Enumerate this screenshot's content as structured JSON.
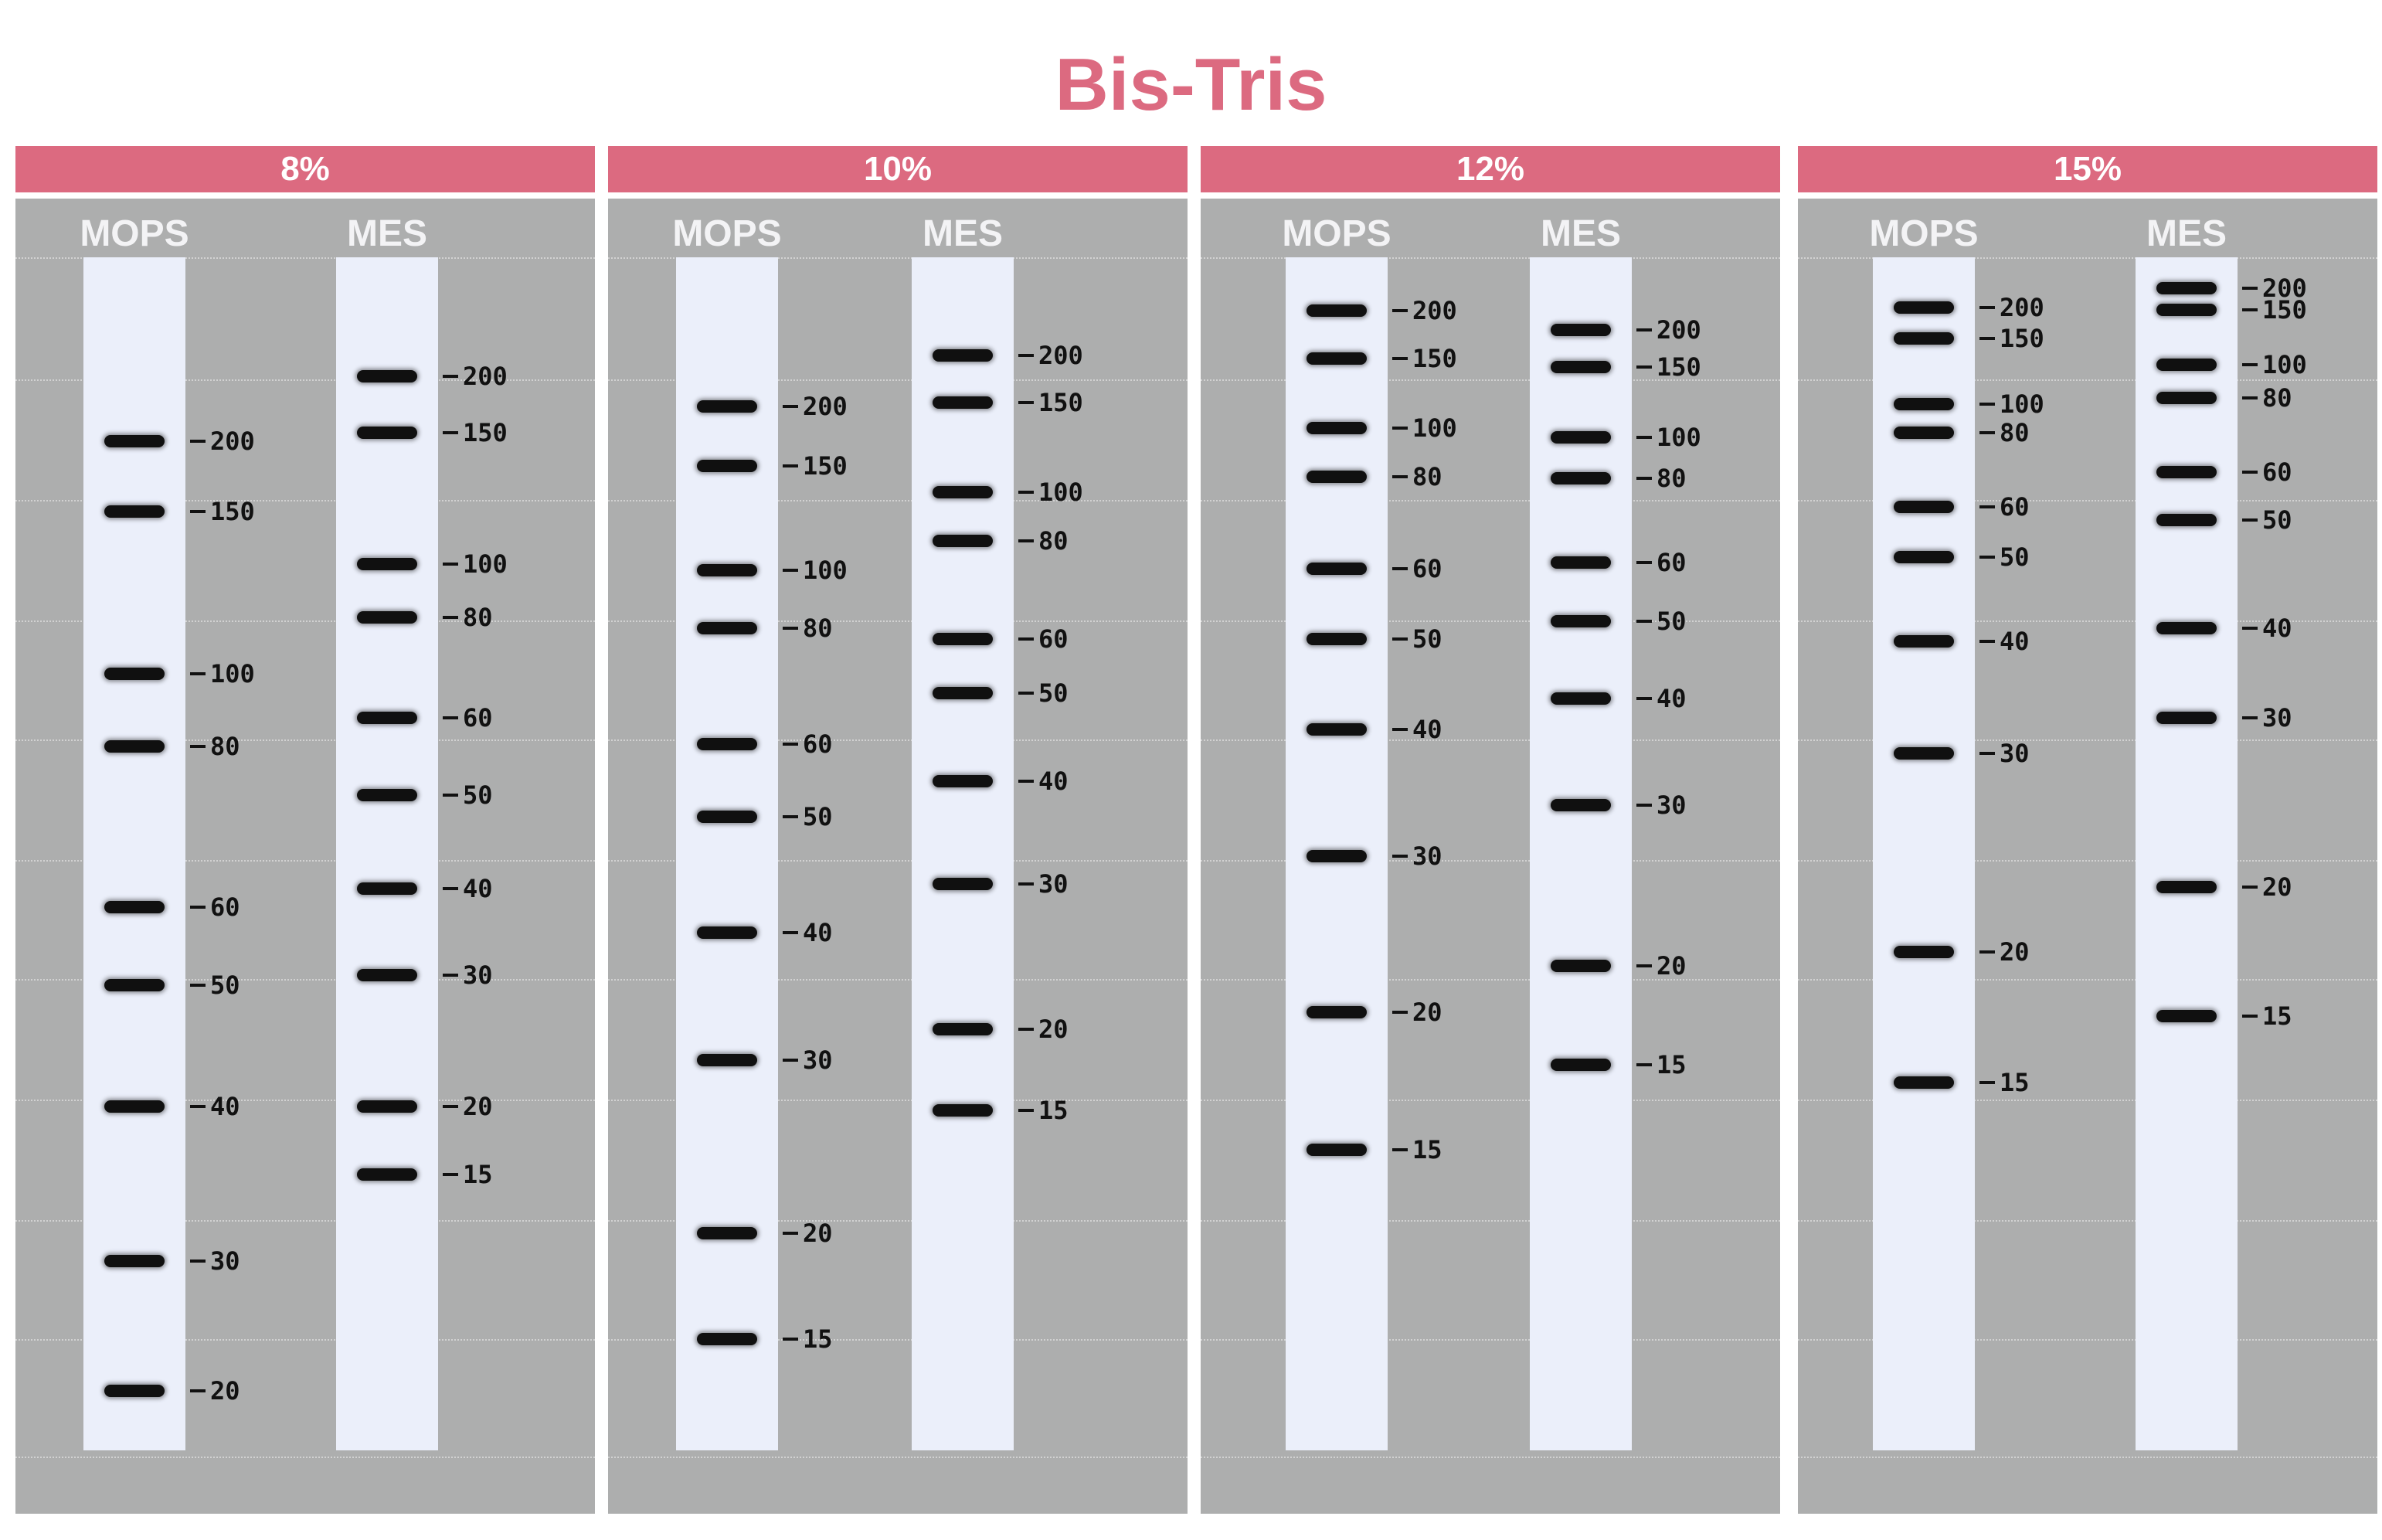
{
  "title": "Bis-Tris",
  "panels": [
    {
      "header": "8%",
      "lanes": [
        {
          "name": "MOPS",
          "bands": [
            {
              "label": "200",
              "pos": 0.154
            },
            {
              "label": "150",
              "pos": 0.213
            },
            {
              "label": "100",
              "pos": 0.349
            },
            {
              "label": "80",
              "pos": 0.41
            },
            {
              "label": "60",
              "pos": 0.545
            },
            {
              "label": "50",
              "pos": 0.61
            },
            {
              "label": "40",
              "pos": 0.712
            },
            {
              "label": "30",
              "pos": 0.841
            },
            {
              "label": "20",
              "pos": 0.95
            }
          ]
        },
        {
          "name": "MES",
          "bands": [
            {
              "label": "200",
              "pos": 0.1
            },
            {
              "label": "150",
              "pos": 0.147
            },
            {
              "label": "100",
              "pos": 0.257
            },
            {
              "label": "80",
              "pos": 0.302
            },
            {
              "label": "60",
              "pos": 0.386
            },
            {
              "label": "50",
              "pos": 0.451
            },
            {
              "label": "40",
              "pos": 0.529
            },
            {
              "label": "30",
              "pos": 0.602
            },
            {
              "label": "20",
              "pos": 0.712
            },
            {
              "label": "15",
              "pos": 0.769
            }
          ]
        }
      ]
    },
    {
      "header": "10%",
      "lanes": [
        {
          "name": "MOPS",
          "bands": [
            {
              "label": "200",
              "pos": 0.125
            },
            {
              "label": "150",
              "pos": 0.175
            },
            {
              "label": "100",
              "pos": 0.262
            },
            {
              "label": "80",
              "pos": 0.311
            },
            {
              "label": "60",
              "pos": 0.408
            },
            {
              "label": "50",
              "pos": 0.469
            },
            {
              "label": "40",
              "pos": 0.566
            },
            {
              "label": "30",
              "pos": 0.673
            },
            {
              "label": "20",
              "pos": 0.818
            },
            {
              "label": "15",
              "pos": 0.907
            }
          ]
        },
        {
          "name": "MES",
          "bands": [
            {
              "label": "200",
              "pos": 0.082
            },
            {
              "label": "150",
              "pos": 0.122
            },
            {
              "label": "100",
              "pos": 0.197
            },
            {
              "label": "80",
              "pos": 0.238
            },
            {
              "label": "60",
              "pos": 0.32
            },
            {
              "label": "50",
              "pos": 0.365
            },
            {
              "label": "40",
              "pos": 0.439
            },
            {
              "label": "30",
              "pos": 0.525
            },
            {
              "label": "20",
              "pos": 0.647
            },
            {
              "label": "15",
              "pos": 0.715
            }
          ]
        }
      ]
    },
    {
      "header": "12%",
      "lanes": [
        {
          "name": "MOPS",
          "bands": [
            {
              "label": "200",
              "pos": 0.045
            },
            {
              "label": "150",
              "pos": 0.085
            },
            {
              "label": "100",
              "pos": 0.143
            },
            {
              "label": "80",
              "pos": 0.184
            },
            {
              "label": "60",
              "pos": 0.261
            },
            {
              "label": "50",
              "pos": 0.32
            },
            {
              "label": "40",
              "pos": 0.396
            },
            {
              "label": "30",
              "pos": 0.502
            },
            {
              "label": "20",
              "pos": 0.633
            },
            {
              "label": "15",
              "pos": 0.748
            }
          ]
        },
        {
          "name": "MES",
          "bands": [
            {
              "label": "200",
              "pos": 0.061
            },
            {
              "label": "150",
              "pos": 0.092
            },
            {
              "label": "100",
              "pos": 0.151
            },
            {
              "label": "80",
              "pos": 0.185
            },
            {
              "label": "60",
              "pos": 0.256
            },
            {
              "label": "50",
              "pos": 0.305
            },
            {
              "label": "40",
              "pos": 0.37
            },
            {
              "label": "30",
              "pos": 0.459
            },
            {
              "label": "20",
              "pos": 0.594
            },
            {
              "label": "15",
              "pos": 0.677
            }
          ]
        }
      ]
    },
    {
      "header": "15%",
      "lanes": [
        {
          "name": "MOPS",
          "bands": [
            {
              "label": "200",
              "pos": 0.042
            },
            {
              "label": "150",
              "pos": 0.068
            },
            {
              "label": "100",
              "pos": 0.123
            },
            {
              "label": "80",
              "pos": 0.147
            },
            {
              "label": "60",
              "pos": 0.209
            },
            {
              "label": "50",
              "pos": 0.251
            },
            {
              "label": "40",
              "pos": 0.322
            },
            {
              "label": "30",
              "pos": 0.416
            },
            {
              "label": "20",
              "pos": 0.582
            },
            {
              "label": "15",
              "pos": 0.692
            }
          ]
        },
        {
          "name": "MES",
          "bands": [
            {
              "label": "200",
              "pos": 0.026
            },
            {
              "label": "150",
              "pos": 0.044
            },
            {
              "label": "100",
              "pos": 0.09
            },
            {
              "label": "80",
              "pos": 0.118
            },
            {
              "label": "60",
              "pos": 0.18
            },
            {
              "label": "50",
              "pos": 0.22
            },
            {
              "label": "40",
              "pos": 0.311
            },
            {
              "label": "30",
              "pos": 0.386
            },
            {
              "label": "20",
              "pos": 0.528
            },
            {
              "label": "15",
              "pos": 0.636
            }
          ]
        }
      ]
    }
  ]
}
